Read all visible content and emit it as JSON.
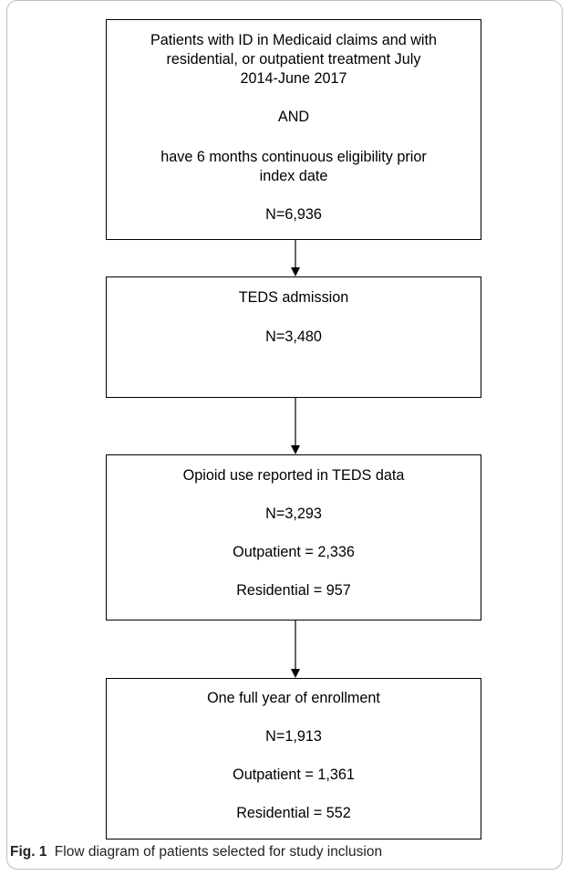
{
  "boxes": [
    {
      "lines": [
        "Patients with ID in Medicaid claims and with",
        "residential, or outpatient treatment July",
        "2014-June 2017",
        "AND",
        "have 6 months continuous eligibility prior",
        "index date",
        "N=6,936"
      ]
    },
    {
      "lines": [
        "TEDS admission",
        "N=3,480"
      ]
    },
    {
      "lines": [
        "Opioid use reported in TEDS data",
        "N=3,293",
        "Outpatient = 2,336",
        "Residential = 957"
      ]
    },
    {
      "lines": [
        "One full year of enrollment",
        "N=1,913",
        "Outpatient = 1,361",
        "Residential = 552"
      ]
    }
  ],
  "caption": {
    "label": "Fig. 1",
    "text": "Flow diagram of patients selected for study inclusion"
  }
}
